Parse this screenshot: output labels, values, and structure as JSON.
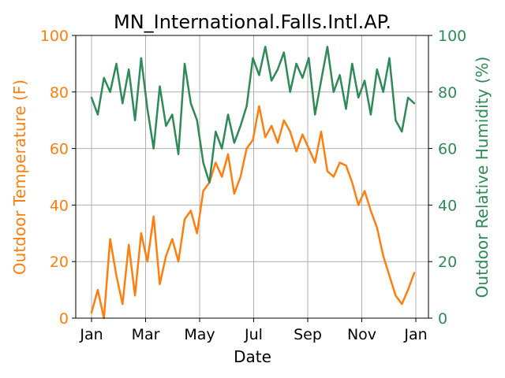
{
  "chart_data": {
    "type": "line",
    "title": "MN_International.Falls.Intl.AP.",
    "xlabel": "Date",
    "y_left_label": "Outdoor Temperature (F)",
    "y_right_label": "Outdoor Relative Humidity (%)",
    "x_tick_labels": [
      "Jan",
      "Mar",
      "May",
      "Jul",
      "Sep",
      "Nov",
      "Jan"
    ],
    "y_left_ticks": [
      "0",
      "20",
      "40",
      "60",
      "80",
      "100"
    ],
    "y_right_ticks": [
      "0",
      "20",
      "40",
      "60",
      "80",
      "100"
    ],
    "y_left_lim": [
      0,
      100
    ],
    "y_right_lim": [
      0,
      100
    ],
    "grid": true,
    "colors": {
      "temperature": "#ff7f0e",
      "humidity": "#2e8b57"
    },
    "series": [
      {
        "axis": "left",
        "color": "#ff7f0e",
        "x": [
          "Jan 1",
          "Jan 8",
          "Jan 15",
          "Jan 22",
          "Jan 29",
          "Feb 5",
          "Feb 12",
          "Feb 19",
          "Feb 26",
          "Mar 5",
          "Mar 12",
          "Mar 19",
          "Mar 26",
          "Apr 2",
          "Apr 9",
          "Apr 16",
          "Apr 23",
          "Apr 30",
          "May 7",
          "May 14",
          "May 21",
          "May 28",
          "Jun 4",
          "Jun 11",
          "Jun 18",
          "Jun 25",
          "Jul 2",
          "Jul 9",
          "Jul 16",
          "Jul 23",
          "Jul 30",
          "Aug 6",
          "Aug 13",
          "Aug 20",
          "Aug 27",
          "Sep 3",
          "Sep 10",
          "Sep 17",
          "Sep 24",
          "Oct 1",
          "Oct 8",
          "Oct 15",
          "Oct 22",
          "Oct 29",
          "Nov 5",
          "Nov 12",
          "Nov 19",
          "Nov 26",
          "Dec 3",
          "Dec 10",
          "Dec 17",
          "Dec 24",
          "Dec 31"
        ],
        "values": [
          2,
          10,
          0,
          28,
          15,
          5,
          26,
          8,
          30,
          20,
          36,
          12,
          22,
          28,
          20,
          35,
          38,
          30,
          45,
          48,
          55,
          50,
          58,
          44,
          50,
          60,
          63,
          75,
          64,
          68,
          62,
          70,
          66,
          59,
          65,
          60,
          55,
          66,
          52,
          50,
          55,
          54,
          48,
          40,
          45,
          38,
          32,
          22,
          15,
          8,
          5,
          10,
          16
        ]
      },
      {
        "axis": "right",
        "color": "#2e8b57",
        "x": [
          "Jan 1",
          "Jan 8",
          "Jan 15",
          "Jan 22",
          "Jan 29",
          "Feb 5",
          "Feb 12",
          "Feb 19",
          "Feb 26",
          "Mar 5",
          "Mar 12",
          "Mar 19",
          "Mar 26",
          "Apr 2",
          "Apr 9",
          "Apr 16",
          "Apr 23",
          "Apr 30",
          "May 7",
          "May 14",
          "May 21",
          "May 28",
          "Jun 4",
          "Jun 11",
          "Jun 18",
          "Jun 25",
          "Jul 2",
          "Jul 9",
          "Jul 16",
          "Jul 23",
          "Jul 30",
          "Aug 6",
          "Aug 13",
          "Aug 20",
          "Aug 27",
          "Sep 3",
          "Sep 10",
          "Sep 17",
          "Sep 24",
          "Oct 1",
          "Oct 8",
          "Oct 15",
          "Oct 22",
          "Oct 29",
          "Nov 5",
          "Nov 12",
          "Nov 19",
          "Nov 26",
          "Dec 3",
          "Dec 10",
          "Dec 17",
          "Dec 24",
          "Dec 31"
        ],
        "values": [
          78,
          72,
          85,
          80,
          90,
          76,
          88,
          70,
          92,
          74,
          60,
          82,
          68,
          72,
          58,
          90,
          76,
          70,
          55,
          48,
          66,
          60,
          72,
          62,
          68,
          75,
          92,
          86,
          96,
          84,
          88,
          94,
          80,
          90,
          85,
          92,
          72,
          84,
          96,
          80,
          86,
          74,
          90,
          78,
          84,
          72,
          88,
          80,
          92,
          70,
          66,
          78,
          76
        ]
      }
    ]
  }
}
